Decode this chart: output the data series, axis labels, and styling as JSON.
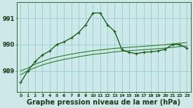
{
  "background_color": "#cce8e8",
  "grid_color": "#99cccc",
  "line_color_main": "#1a5c1a",
  "line_color_ref": "#2d7a2d",
  "xlabel": "Graphe pression niveau de la mer (hPa)",
  "xlabel_fontsize": 7,
  "ylabel_ticks": [
    989,
    990,
    991
  ],
  "xlim": [
    -0.5,
    23.5
  ],
  "ylim": [
    988.2,
    991.6
  ],
  "xticks": [
    0,
    1,
    2,
    3,
    4,
    5,
    6,
    7,
    8,
    9,
    10,
    11,
    12,
    13,
    14,
    15,
    16,
    17,
    18,
    19,
    20,
    21,
    22,
    23
  ],
  "main_line_x": [
    0,
    1,
    2,
    3,
    4,
    5,
    6,
    7,
    8,
    9,
    10,
    11,
    12,
    13,
    14,
    15,
    16,
    17,
    18,
    19,
    20,
    21,
    22,
    23
  ],
  "main_line_y": [
    988.55,
    989.0,
    989.35,
    989.6,
    989.75,
    990.0,
    990.1,
    990.25,
    990.45,
    990.75,
    991.2,
    991.2,
    990.75,
    990.5,
    989.8,
    989.7,
    989.65,
    989.7,
    989.72,
    989.75,
    989.82,
    990.0,
    990.0,
    989.85
  ],
  "dot_line_x": [
    0,
    1,
    2,
    3,
    4,
    5,
    6,
    7,
    8,
    9,
    10,
    11,
    12,
    13,
    14,
    15,
    16,
    17,
    18,
    19,
    20,
    21,
    22,
    23
  ],
  "dot_line_y": [
    988.55,
    989.0,
    989.35,
    989.6,
    989.75,
    990.0,
    990.1,
    990.25,
    990.45,
    990.75,
    991.2,
    991.2,
    990.75,
    990.5,
    989.8,
    989.7,
    989.65,
    989.7,
    989.72,
    989.75,
    989.82,
    990.0,
    990.0,
    989.85
  ],
  "ref1_line_x": [
    0,
    1,
    2,
    3,
    4,
    5,
    6,
    7,
    8,
    9,
    10,
    11,
    12,
    13,
    14,
    15,
    16,
    17,
    18,
    19,
    20,
    21,
    22,
    23
  ],
  "ref1_line_y": [
    989.0,
    989.1,
    989.25,
    989.35,
    989.45,
    989.52,
    989.58,
    989.63,
    989.68,
    989.72,
    989.76,
    989.79,
    989.82,
    989.85,
    989.87,
    989.89,
    989.91,
    989.93,
    989.95,
    989.97,
    989.99,
    990.02,
    990.05,
    990.07
  ],
  "ref2_line_x": [
    0,
    1,
    2,
    3,
    4,
    5,
    6,
    7,
    8,
    9,
    10,
    11,
    12,
    13,
    14,
    15,
    16,
    17,
    18,
    19,
    20,
    21,
    22,
    23
  ],
  "ref2_line_y": [
    988.85,
    989.0,
    989.12,
    989.22,
    989.3,
    989.37,
    989.43,
    989.48,
    989.53,
    989.58,
    989.62,
    989.65,
    989.68,
    989.72,
    989.74,
    989.76,
    989.78,
    989.8,
    989.82,
    989.84,
    989.86,
    989.89,
    989.92,
    989.94
  ]
}
